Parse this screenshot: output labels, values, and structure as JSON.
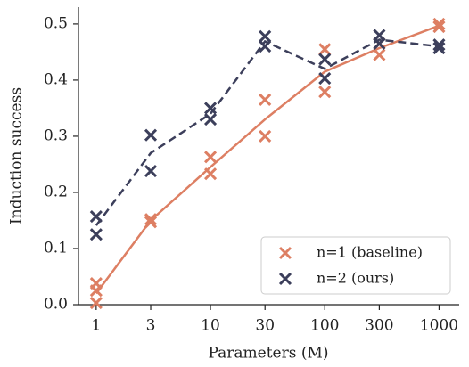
{
  "chart_data": {
    "type": "scatter-line",
    "xlabel": "Parameters (M)",
    "ylabel": "Induction success",
    "x": [
      1,
      3,
      10,
      30,
      100,
      300,
      1000
    ],
    "xscale": "log",
    "xlim": [
      0.7,
      1500
    ],
    "xticks": [
      1,
      3,
      10,
      30,
      100,
      300,
      1000
    ],
    "ylim": [
      0,
      0.53
    ],
    "yticks": [
      {
        "value": 0,
        "label": "0.0"
      },
      0.1,
      0.2,
      0.3,
      0.4,
      0.5
    ],
    "legend": "lower right",
    "series": [
      {
        "name": "n=1 (baseline)",
        "color": "#dd7f63",
        "line_style": "solid",
        "values": [
          0.02,
          0.15,
          0.245,
          0.33,
          0.415,
          0.457,
          0.497
        ],
        "points": {
          "x": [
            1,
            1,
            1,
            3,
            3,
            10,
            10,
            30,
            30,
            100,
            100,
            300,
            300,
            1000,
            1000
          ],
          "y": [
            0.038,
            0.025,
            0.003,
            0.152,
            0.147,
            0.263,
            0.233,
            0.365,
            0.3,
            0.455,
            0.379,
            0.465,
            0.445,
            0.5,
            0.495
          ]
        }
      },
      {
        "name": "n=2 (ours)",
        "color": "#3c3f5b",
        "line_style": "dashed",
        "values": [
          0.141,
          0.27,
          0.34,
          0.469,
          0.42,
          0.472,
          0.46
        ],
        "points": {
          "x": [
            1,
            1,
            3,
            3,
            10,
            10,
            30,
            30,
            100,
            100,
            300,
            300,
            1000,
            1000
          ],
          "y": [
            0.157,
            0.125,
            0.302,
            0.238,
            0.35,
            0.33,
            0.478,
            0.46,
            0.437,
            0.403,
            0.48,
            0.465,
            0.463,
            0.457
          ]
        }
      }
    ]
  }
}
